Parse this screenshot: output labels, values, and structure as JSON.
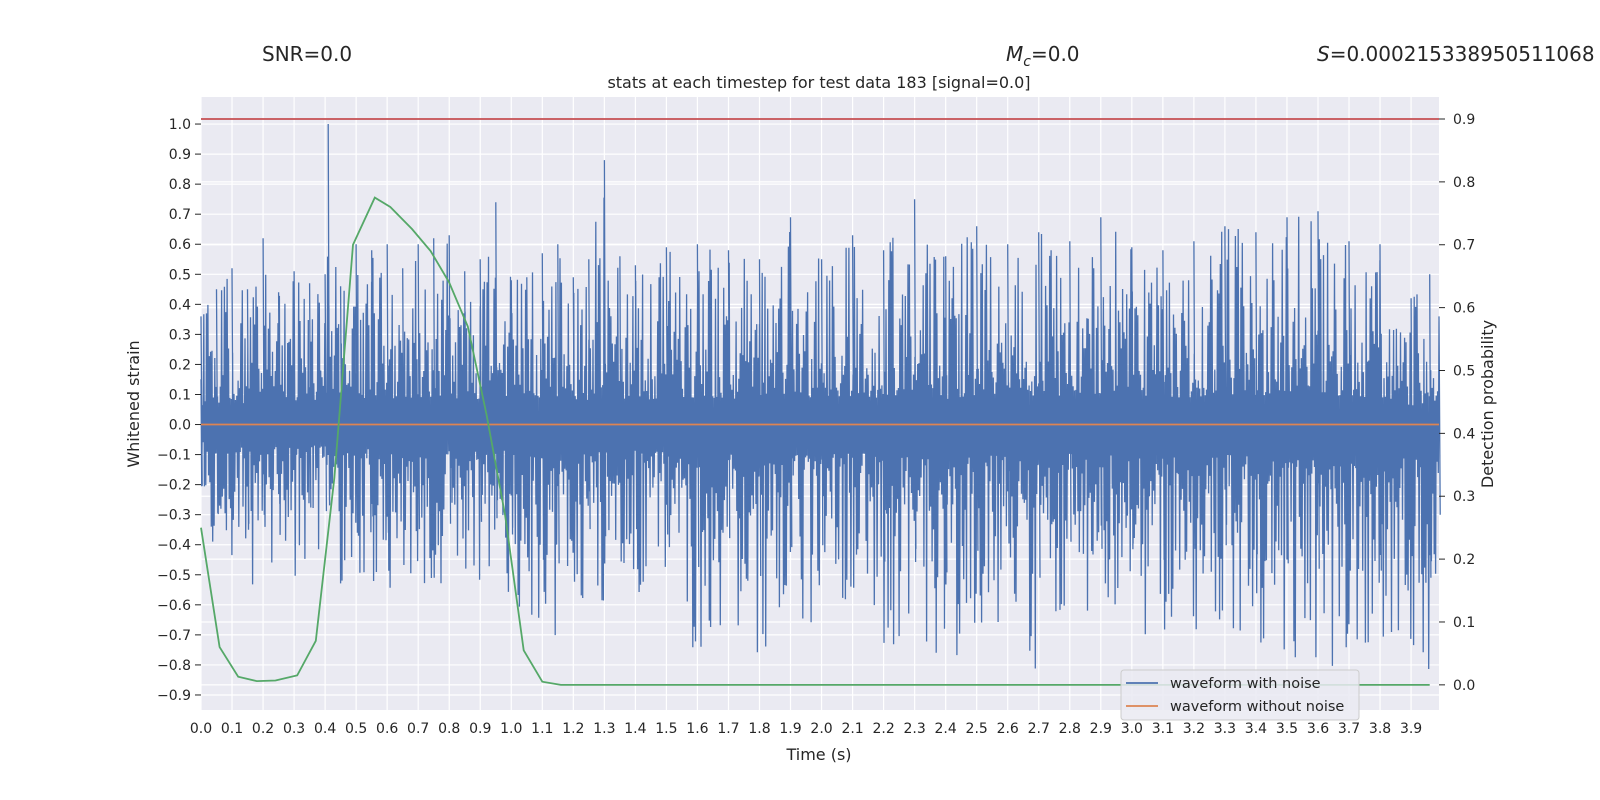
{
  "header": {
    "snr": "SNR=0.0",
    "mc_symbol": "M",
    "mc_sub": "c",
    "mc_value": "=0.0",
    "s_symbol": "S",
    "s_value": "=0.000215338950511068"
  },
  "chart_data": {
    "type": "line",
    "title": "stats at each timestep for test data 183 [signal=0.0]",
    "xlabel": "Time (s)",
    "ylabel_left": "Whitened strain",
    "ylabel_right": "Detection probability",
    "xlim": [
      0.0,
      3.99
    ],
    "ylim_left": [
      -0.95,
      1.09
    ],
    "ylim_right": [
      -0.04,
      0.935
    ],
    "x_ticks": [
      "0.0",
      "0.1",
      "0.2",
      "0.3",
      "0.4",
      "0.5",
      "0.6",
      "0.7",
      "0.8",
      "0.9",
      "1.0",
      "1.1",
      "1.2",
      "1.3",
      "1.4",
      "1.5",
      "1.6",
      "1.7",
      "1.8",
      "1.9",
      "2.0",
      "2.1",
      "2.2",
      "2.3",
      "2.4",
      "2.5",
      "2.6",
      "2.7",
      "2.8",
      "2.9",
      "3.0",
      "3.1",
      "3.2",
      "3.3",
      "3.4",
      "3.5",
      "3.6",
      "3.7",
      "3.8",
      "3.9"
    ],
    "y_ticks_left": [
      "1.0",
      "0.9",
      "0.8",
      "0.7",
      "0.6",
      "0.5",
      "0.4",
      "0.3",
      "0.2",
      "0.1",
      "0.0",
      "−0.1",
      "−0.2",
      "−0.3",
      "−0.4",
      "−0.5",
      "−0.6",
      "−0.7",
      "−0.8",
      "−0.9"
    ],
    "y_ticks_right": [
      "0.9",
      "0.8",
      "0.7",
      "0.6",
      "0.5",
      "0.4",
      "0.3",
      "0.2",
      "0.1",
      "0.0"
    ],
    "grid": true,
    "legend_position": "lower-right",
    "colors": {
      "noisy": "#4c72b0",
      "clean": "#dd8452",
      "probability": "#55a868",
      "threshold": "#c44e52",
      "background": "#eaeaf2",
      "grid": "#ffffff"
    },
    "series": [
      {
        "name": "waveform with noise",
        "axis": "left",
        "envelope": {
          "x": [
            0.0,
            0.05,
            0.1,
            0.15,
            0.2,
            0.25,
            0.3,
            0.35,
            0.4,
            0.41,
            0.45,
            0.5,
            0.55,
            0.6,
            0.65,
            0.7,
            0.75,
            0.8,
            0.85,
            0.9,
            0.95,
            1.0,
            1.05,
            1.1,
            1.15,
            1.2,
            1.25,
            1.3,
            1.35,
            1.4,
            1.5,
            1.6,
            1.7,
            1.8,
            1.9,
            2.0,
            2.1,
            2.2,
            2.3,
            2.4,
            2.5,
            2.6,
            2.7,
            2.8,
            2.9,
            3.0,
            3.1,
            3.2,
            3.3,
            3.4,
            3.5,
            3.6,
            3.7,
            3.8,
            3.9,
            3.96,
            3.99
          ],
          "max": [
            0.36,
            0.45,
            0.52,
            0.45,
            0.62,
            0.44,
            0.51,
            0.47,
            0.5,
            1.0,
            0.46,
            0.6,
            0.58,
            0.6,
            0.52,
            0.6,
            0.62,
            0.63,
            0.51,
            0.55,
            0.74,
            0.48,
            0.49,
            0.57,
            0.6,
            0.49,
            0.55,
            0.88,
            0.56,
            0.53,
            0.59,
            0.6,
            0.58,
            0.55,
            0.69,
            0.55,
            0.63,
            0.58,
            0.75,
            0.56,
            0.66,
            0.6,
            0.64,
            0.61,
            0.69,
            0.59,
            0.58,
            0.61,
            0.66,
            0.64,
            0.69,
            0.71,
            0.61,
            0.6,
            0.42,
            0.5,
            0.36
          ],
          "min": [
            -0.34,
            -0.49,
            -0.45,
            -0.55,
            -0.5,
            -0.44,
            -0.52,
            -0.46,
            -0.48,
            -0.42,
            -0.55,
            -0.6,
            -0.51,
            -0.6,
            -0.49,
            -0.58,
            -0.57,
            -0.55,
            -0.58,
            -0.54,
            -0.52,
            -0.61,
            -0.7,
            -0.75,
            -0.77,
            -0.6,
            -0.58,
            -0.62,
            -0.62,
            -0.58,
            -0.61,
            -0.79,
            -0.63,
            -0.84,
            -0.68,
            -0.67,
            -0.57,
            -0.76,
            -0.69,
            -0.82,
            -0.7,
            -0.66,
            -0.85,
            -0.65,
            -0.69,
            -0.66,
            -0.75,
            -0.69,
            -0.67,
            -0.72,
            -0.77,
            -0.8,
            -0.81,
            -0.81,
            -0.73,
            -0.85,
            -0.5
          ]
        }
      },
      {
        "name": "waveform without noise",
        "axis": "left",
        "x": [
          0.0,
          3.99
        ],
        "y": [
          0.0,
          0.0
        ]
      },
      {
        "axis": "right",
        "x": [
          0.0,
          0.06,
          0.12,
          0.18,
          0.24,
          0.31,
          0.37,
          0.43,
          0.49,
          0.56,
          0.61,
          0.68,
          0.74,
          0.8,
          0.86,
          0.92,
          0.98,
          1.04,
          1.1,
          1.16,
          1.22,
          1.3,
          1.5,
          2.0,
          2.5,
          3.0,
          3.5,
          3.96
        ],
        "y": [
          0.25,
          0.06,
          0.013,
          0.006,
          0.007,
          0.015,
          0.07,
          0.33,
          0.7,
          0.775,
          0.76,
          0.725,
          0.69,
          0.64,
          0.57,
          0.43,
          0.27,
          0.055,
          0.005,
          0.0,
          0.0,
          0.0,
          0.0,
          0.0,
          0.0,
          0.0,
          0.0,
          0.0
        ]
      },
      {
        "axis": "right",
        "x": [
          0.0,
          3.99
        ],
        "y": [
          0.9,
          0.9
        ]
      }
    ]
  }
}
